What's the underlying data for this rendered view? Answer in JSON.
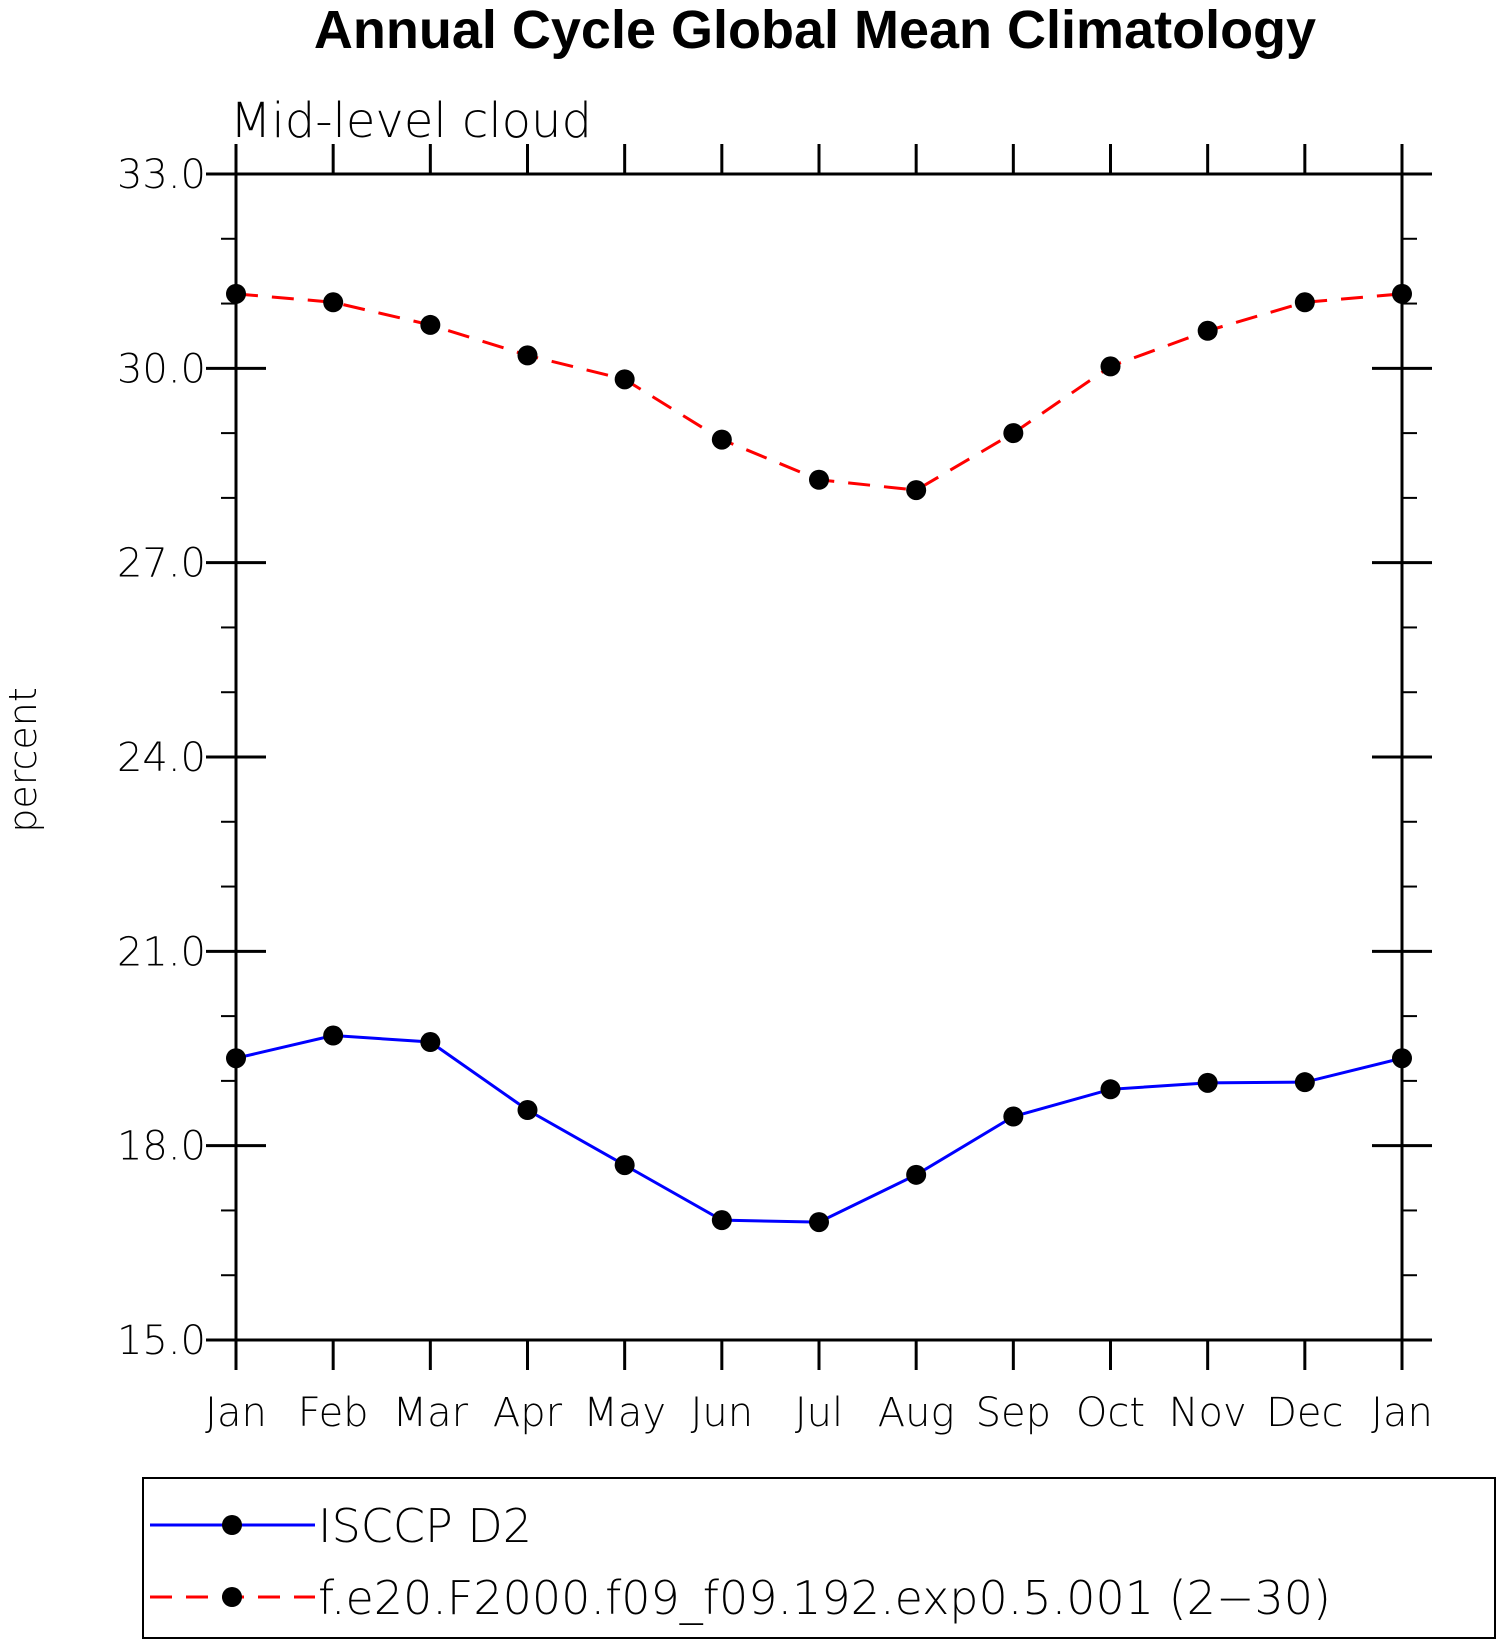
{
  "chart_data": {
    "type": "line",
    "title": "Annual Cycle Global Mean Climatology",
    "subtitle": "Mid-level cloud",
    "ylabel": "percent",
    "xlabel": "",
    "categories": [
      "Jan",
      "Feb",
      "Mar",
      "Apr",
      "May",
      "Jun",
      "Jul",
      "Aug",
      "Sep",
      "Oct",
      "Nov",
      "Dec",
      "Jan"
    ],
    "ylim": [
      15.0,
      33.0
    ],
    "yticks": [
      "15.0",
      "18.0",
      "21.0",
      "24.0",
      "27.0",
      "30.0",
      "33.0"
    ],
    "ytick_values": [
      15,
      18,
      21,
      24,
      27,
      30,
      33
    ],
    "grid": false,
    "legend_position": "bottom",
    "series": [
      {
        "name": "ISCCP D2",
        "color": "#0000ff",
        "line_style": "solid",
        "marker": "filled-circle",
        "values": [
          19.35,
          19.7,
          19.6,
          18.55,
          17.7,
          16.85,
          16.82,
          17.55,
          18.45,
          18.87,
          18.97,
          18.98,
          19.35
        ]
      },
      {
        "name": "f.e20.F2000.f09_f09.192.exp0.5.001 (2−30)",
        "color": "#ff0000",
        "line_style": "dashed",
        "marker": "filled-circle",
        "values": [
          31.15,
          31.02,
          30.67,
          30.2,
          29.83,
          28.9,
          28.28,
          28.12,
          29.0,
          30.03,
          30.58,
          31.02,
          31.15
        ]
      }
    ]
  }
}
